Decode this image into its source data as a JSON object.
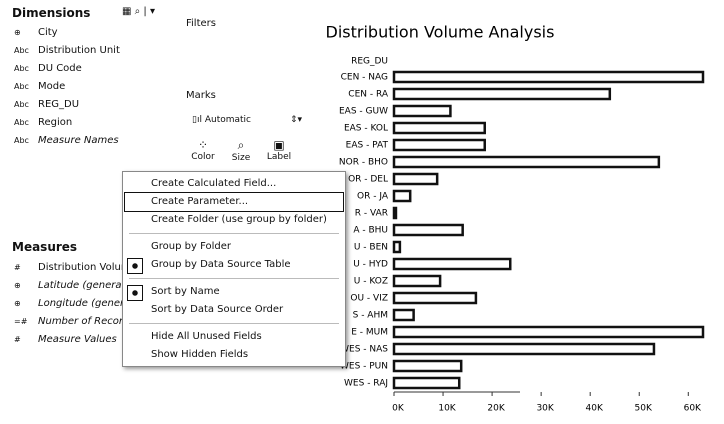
{
  "sidebar": {
    "dimensions_title": "Dimensions",
    "dimensions": [
      {
        "icon": "⊕",
        "label": "City"
      },
      {
        "icon": "Abc",
        "label": "Distribution Unit"
      },
      {
        "icon": "Abc",
        "label": "DU Code"
      },
      {
        "icon": "Abc",
        "label": "Mode"
      },
      {
        "icon": "Abc",
        "label": "REG_DU"
      },
      {
        "icon": "Abc",
        "label": "Region"
      },
      {
        "icon": "Abc",
        "label": "Measure Names"
      }
    ],
    "measures_title": "Measures",
    "measures": [
      {
        "icon": "#",
        "label": "Distribution Volum"
      },
      {
        "icon": "⊕",
        "label": "Latitude (generate"
      },
      {
        "icon": "⊕",
        "label": "Longitude (genera"
      },
      {
        "icon": "=#",
        "label": "Number of Record"
      },
      {
        "icon": "#",
        "label": "Measure Values"
      }
    ]
  },
  "panels": {
    "filters": "Filters",
    "marks": "Marks",
    "mark_type": "Automatic",
    "cards": [
      "Color",
      "Size",
      "Label"
    ]
  },
  "menu": {
    "items": [
      "Create Calculated Field...",
      "Create Parameter...",
      "Create Folder (use group by folder)",
      "Group by Folder",
      "Group by Data Source Table",
      "Sort by Name",
      "Sort by Data Source Order",
      "Hide All Unused Fields",
      "Show Hidden Fields"
    ]
  },
  "chart_data": {
    "type": "hbar",
    "title": "Distribution Volume Analysis",
    "row_header": "REG_DU",
    "categories": [
      "CEN - NAG",
      "CEN - RA",
      "EAS - GUW",
      "EAS - KOL",
      "EAS - PAT",
      "NOR - BHO",
      "OR - DEL",
      "OR - JA",
      "R - VAR",
      "A - BHU",
      "U - BEN",
      "U - HYD",
      "U - KOZ",
      "OU - VIZ",
      "S - AHM",
      "E - MUM",
      "WES - NAS",
      "WES - PUN",
      "WES - RAJ"
    ],
    "values": [
      63000,
      44000,
      11500,
      18500,
      18500,
      54000,
      8800,
      3300,
      400,
      14000,
      1200,
      23700,
      9400,
      16700,
      4000,
      63000,
      53000,
      13700,
      13300
    ],
    "xlim": [
      0,
      63000
    ],
    "xticks": [
      {
        "value": 0,
        "label": "0K"
      },
      {
        "value": 10000,
        "label": "10K"
      },
      {
        "value": 20000,
        "label": "20K"
      },
      {
        "value": 30000,
        "label": "30K"
      },
      {
        "value": 40000,
        "label": "40K"
      },
      {
        "value": 50000,
        "label": "50K"
      },
      {
        "value": 60000,
        "label": "60K"
      }
    ]
  }
}
